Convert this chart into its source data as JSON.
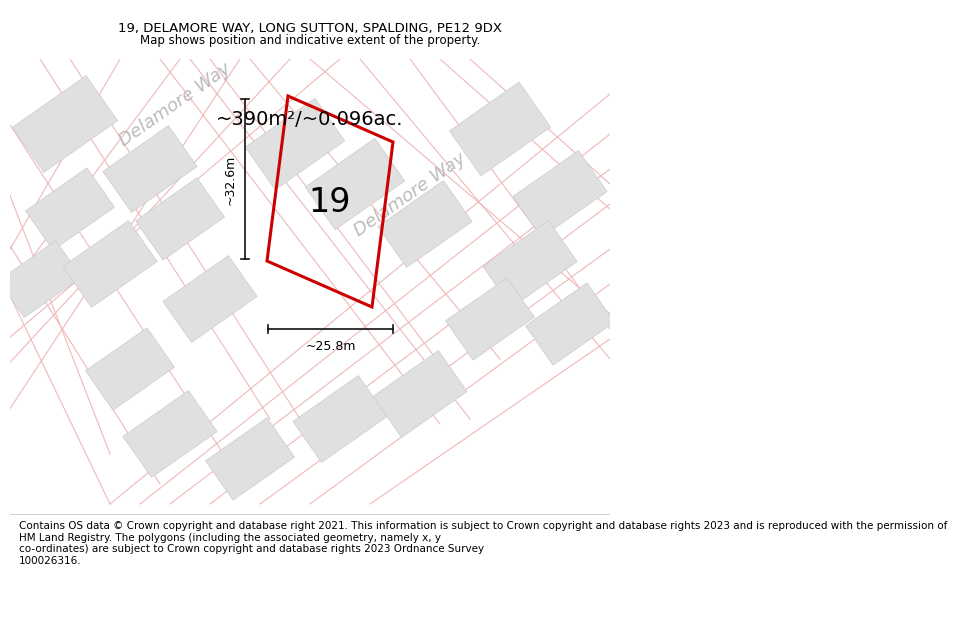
{
  "title_line1": "19, DELAMORE WAY, LONG SUTTON, SPALDING, PE12 9DX",
  "title_line2": "Map shows position and indicative extent of the property.",
  "area_label": "~390m²/~0.096ac.",
  "plot_number": "19",
  "dim_width": "~25.8m",
  "dim_height": "~32.6m",
  "road_label_1": "Delamore Way",
  "road_label_2": "Delamore Way",
  "footer_text": "Contains OS data © Crown copyright and database right 2021. This information is subject to Crown copyright and database rights 2023 and is reproduced with the permission of\nHM Land Registry. The polygons (including the associated geometry, namely x, y\nco-ordinates) are subject to Crown copyright and database rights 2023 Ordnance Survey\n100026316.",
  "map_bg": "#f7f7f7",
  "building_fill": "#e0e0e0",
  "building_edge": "#cccccc",
  "plot_fill": "#f0f0f0",
  "plot_edge": "#cc0000",
  "road_line_color": "#f0b8b8",
  "footer_bg": "#ffffff",
  "title_bg": "#ffffff",
  "road_label_color": "#bbbbbb",
  "dim_line_color": "#111111"
}
